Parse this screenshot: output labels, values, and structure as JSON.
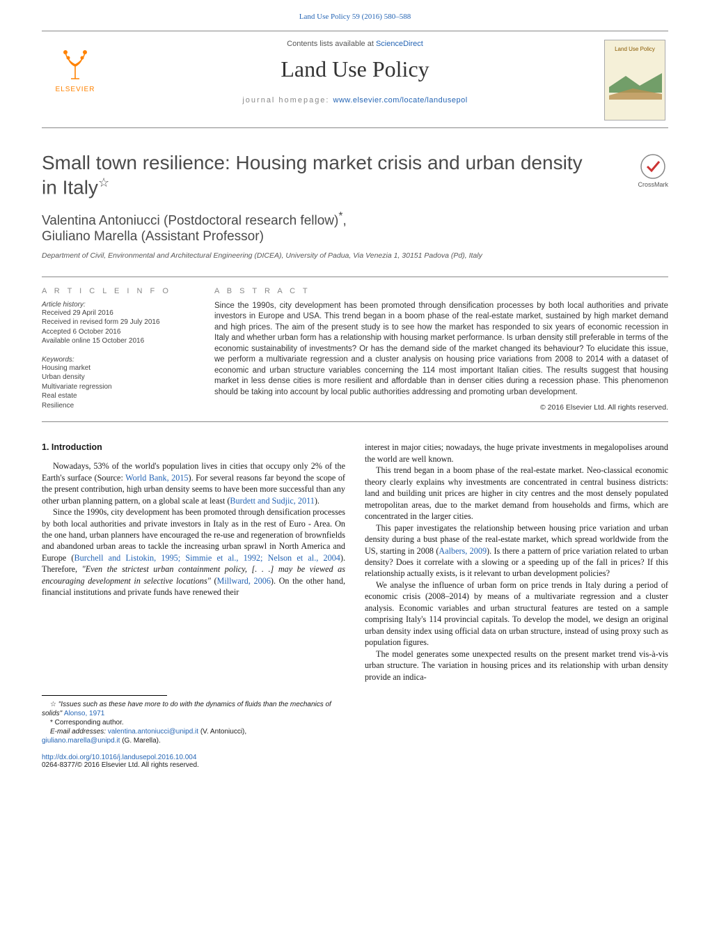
{
  "page_header": {
    "citation": "Land Use Policy 59 (2016) 580–588",
    "color": "#2464b4"
  },
  "masthead": {
    "contents_prefix": "Contents lists available at ",
    "contents_link": "ScienceDirect",
    "journal_title": "Land Use Policy",
    "homepage_prefix": "journal homepage: ",
    "homepage_link": "www.elsevier.com/locate/landusepol",
    "publisher_logo_text": "ELSEVIER",
    "cover_title": "Land Use Policy"
  },
  "article": {
    "title": "Small town resilience: Housing market crisis and urban density in Italy",
    "title_note": "☆",
    "crossmark_label": "CrossMark",
    "authors_line1": "Valentina Antoniucci (Postdoctoral research fellow)",
    "authors_sup1": "*",
    "authors_sep": ",",
    "authors_line2": "Giuliano Marella (Assistant Professor)",
    "affiliation": "Department of Civil, Environmental and Architectural Engineering (DICEA), University of Padua, Via Venezia 1, 30151 Padova (Pd), Italy"
  },
  "meta": {
    "info_label": "A R T I C L E   I N F O",
    "abstract_label": "A B S T R A C T",
    "history_head": "Article history:",
    "history": [
      "Received 29 April 2016",
      "Received in revised form 29 July 2016",
      "Accepted 6 October 2016",
      "Available online 15 October 2016"
    ],
    "keywords_head": "Keywords:",
    "keywords": [
      "Housing market",
      "Urban density",
      "Multivariate regression",
      "Real estate",
      "Resilience"
    ],
    "abstract": "Since the 1990s, city development has been promoted through densification processes by both local authorities and private investors in Europe and USA. This trend began in a boom phase of the real-estate market, sustained by high market demand and high prices. The aim of the present study is to see how the market has responded to six years of economic recession in Italy and whether urban form has a relationship with housing market performance. Is urban density still preferable in terms of the economic sustainability of investments? Or has the demand side of the market changed its behaviour? To elucidate this issue, we perform a multivariate regression and a cluster analysis on housing price variations from 2008 to 2014 with a dataset of economic and urban structure variables concerning the 114 most important Italian cities. The results suggest that housing market in less dense cities is more resilient and affordable than in denser cities during a recession phase. This phenomenon should be taking into account by local public authorities addressing and promoting urban development.",
    "copyright": "© 2016 Elsevier Ltd. All rights reserved."
  },
  "body": {
    "section_heading": "1.  Introduction",
    "left_paras": [
      "Nowadays, 53% of the world's population lives in cities that occupy only 2% of the Earth's surface (Source: <span class=\"ref-link\">World Bank, 2015</span>). For several reasons far beyond the scope of the present contribution, high urban density seems to have been more successful than any other urban planning pattern, on a global scale at least (<span class=\"ref-link\">Burdett and Sudjic, 2011</span>).",
      "Since the 1990s, city development has been promoted through densification processes by both local authorities and private investors in Italy as in the rest of Euro - Area. On the one hand, urban planners have encouraged the re-use and regeneration of brownfields and abandoned urban areas to tackle the increasing urban sprawl in North America and Europe (<span class=\"ref-link\">Burchell and Listokin, 1995; Simmie et al., 1992; Nelson et al., 2004</span>). Therefore, <span class=\"ital\">\"Even the strictest urban containment policy, [. . .] may be viewed as encouraging development in selective locations\"</span> (<span class=\"ref-link\">Millward, 2006</span>). On the other hand, financial institutions and private funds have renewed their"
    ],
    "right_paras": [
      "interest in major cities; nowadays, the huge private investments in megalopolises around the world are well known.",
      "This trend began in a boom phase of the real-estate market. Neo-classical economic theory clearly explains why investments are concentrated in central business districts: land and building unit prices are higher in city centres and the most densely populated metropolitan areas, due to the market demand from households and firms, which are concentrated in the larger cities.",
      "This paper investigates the relationship between housing price variation and urban density during a bust phase of the real-estate market, which spread worldwide from the US, starting in 2008 (<span class=\"ref-link\">Aalbers, 2009</span>). Is there a pattern of price variation related to urban density? Does it correlate with a slowing or a speeding up of the fall in prices? If this relationship actually exists, is it relevant to urban development policies?",
      "We analyse the influence of urban form on price trends in Italy during a period of economic crisis (2008–2014) by means of a multivariate regression and a cluster analysis. Economic variables and urban structural features are tested on a sample comprising Italy's 114 provincial capitals. To develop the model, we design an original urban density index using official data on urban structure, instead of using proxy such as population figures.",
      "The model generates some unexpected results on the present market trend vis-à-vis urban structure. The variation in housing prices and its relationship with urban density provide an indica-"
    ]
  },
  "footnotes": {
    "note_star": "☆ ",
    "note_text": "\"Issues such as these have more to do with the dynamics of fluids than the mechanics of solids\" ",
    "note_cite": "Alonso, 1971",
    "corr_mark": "* ",
    "corr_text": "Corresponding author.",
    "email_label": "E-mail addresses: ",
    "email1": "valentina.antoniucci@unipd.it",
    "email1_who": " (V. Antoniucci),",
    "email2": "giuliano.marella@unipd.it",
    "email2_who": " (G. Marella)."
  },
  "doi": {
    "url": "http://dx.doi.org/10.1016/j.landusepol.2016.10.004",
    "issn_line": "0264-8377/© 2016 Elsevier Ltd. All rights reserved."
  },
  "colors": {
    "link": "#2464b4",
    "elsevier_orange": "#ff8200",
    "text": "#1a1a1a",
    "rule": "#888888",
    "background": "#ffffff"
  },
  "typography": {
    "body_font": "Times New Roman",
    "sans_font": "Arial",
    "title_size_pt": 21,
    "journal_title_size_pt": 24,
    "body_size_pt": 9,
    "meta_size_pt": 7.5
  }
}
